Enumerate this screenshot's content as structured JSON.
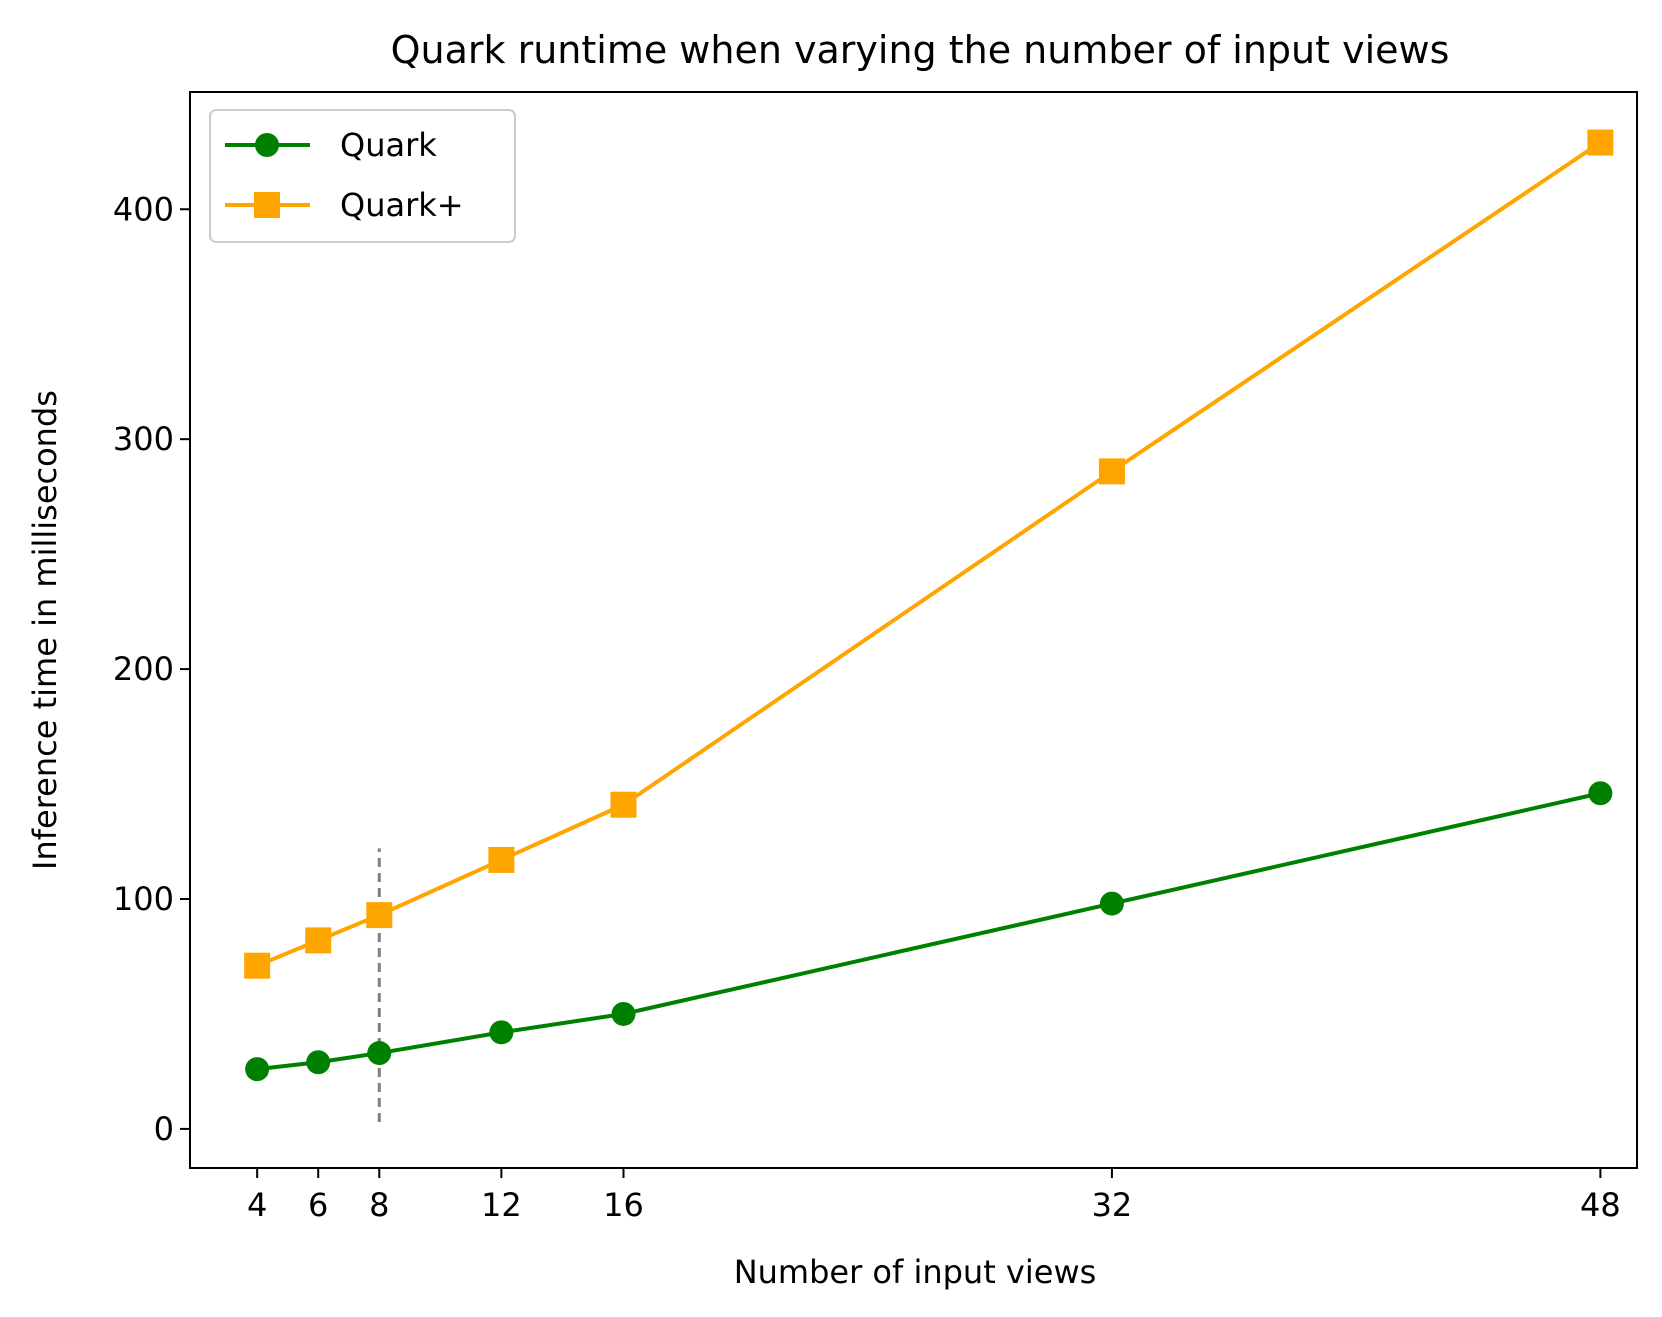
{
  "chart_data": {
    "type": "line",
    "title": "Quark runtime when varying the number of input views",
    "xlabel": "Number of input views",
    "ylabel": "Inference time in milliseconds",
    "x": [
      4,
      6,
      8,
      12,
      16,
      32,
      48
    ],
    "xticks": [
      4,
      6,
      8,
      12,
      16,
      32,
      48
    ],
    "yticks": [
      0,
      100,
      200,
      300,
      400
    ],
    "xlim": [
      1.8,
      49.2
    ],
    "ylim": [
      -17,
      451
    ],
    "grid": false,
    "legend_position": "top-left",
    "series": [
      {
        "name": "Quark",
        "color": "#008000",
        "marker": "circle",
        "values": [
          26,
          29,
          33,
          42,
          50,
          98,
          146
        ]
      },
      {
        "name": "Quark+",
        "color": "#FFA500",
        "marker": "square",
        "values": [
          71,
          82,
          93,
          117,
          141,
          286,
          429
        ]
      }
    ],
    "annotations": [
      {
        "type": "vline",
        "x": 8,
        "y_from": 3,
        "y_to": 122,
        "color": "#808080",
        "style": "dashed"
      }
    ]
  }
}
